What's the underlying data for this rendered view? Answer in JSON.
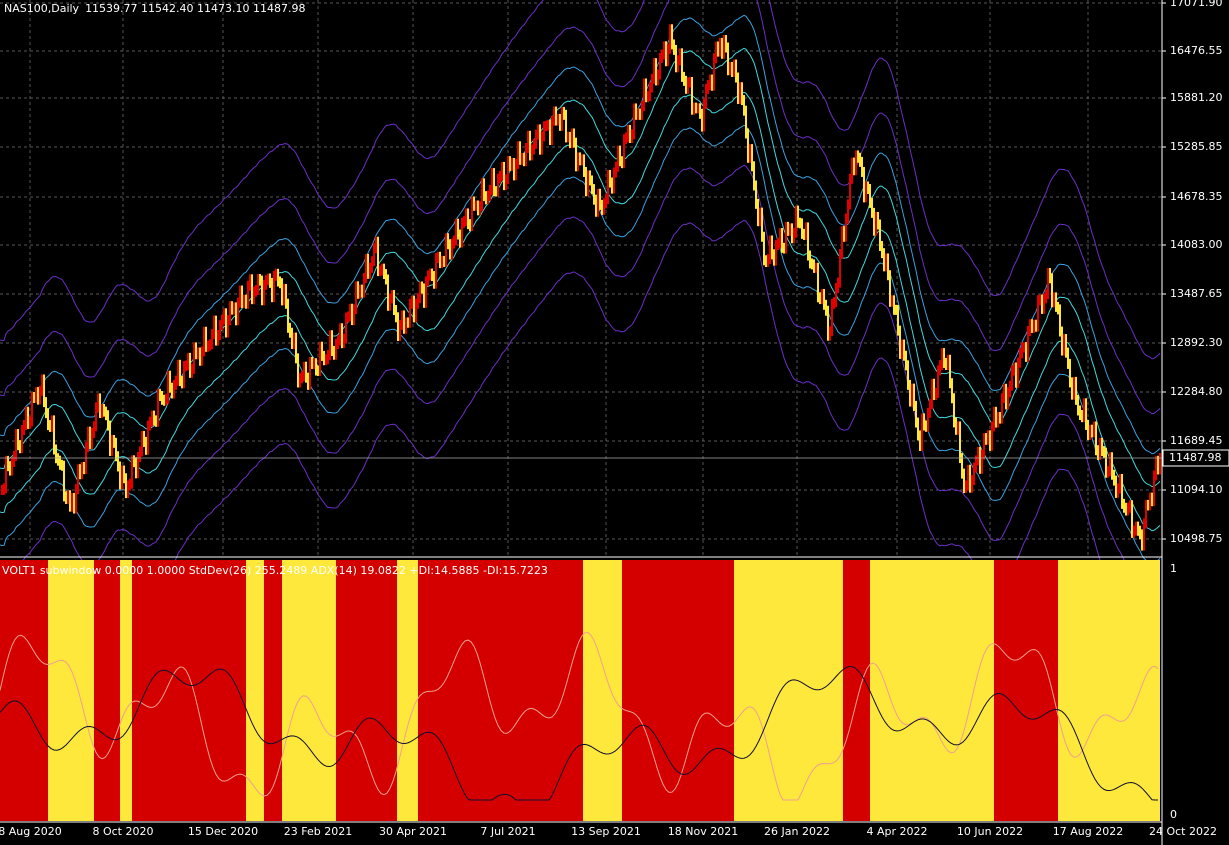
{
  "header": {
    "title": "NAS100,Daily",
    "ohlc": "11539.77 11542.40 11473.10 11487.98"
  },
  "price_axis": [
    "17071.90",
    "16476.55",
    "15881.20",
    "15285.85",
    "14678.35",
    "14083.00",
    "13487.65",
    "12892.30",
    "12284.80",
    "11689.45",
    "11094.10",
    "10498.75"
  ],
  "current_price": "11487.98",
  "subwindow": {
    "header": "VOLT1 subwindow 0.0000 1.0000  StdDev(26) 255.2489  ADX(14) 19.0822 +DI:14.5885 -DI:15.7223",
    "scale_max": "1",
    "scale_min": "0"
  },
  "date_axis": [
    "8 Aug 2020",
    "8 Oct 2020",
    "15 Dec 2020",
    "23 Feb 2021",
    "30 Apr 2021",
    "7 Jul 2021",
    "13 Sep 2021",
    "18 Nov 2021",
    "26 Jan 2022",
    "4 Apr 2022",
    "10 Jun 2022",
    "17 Aug 2022",
    "24 Oct 2022"
  ]
}
